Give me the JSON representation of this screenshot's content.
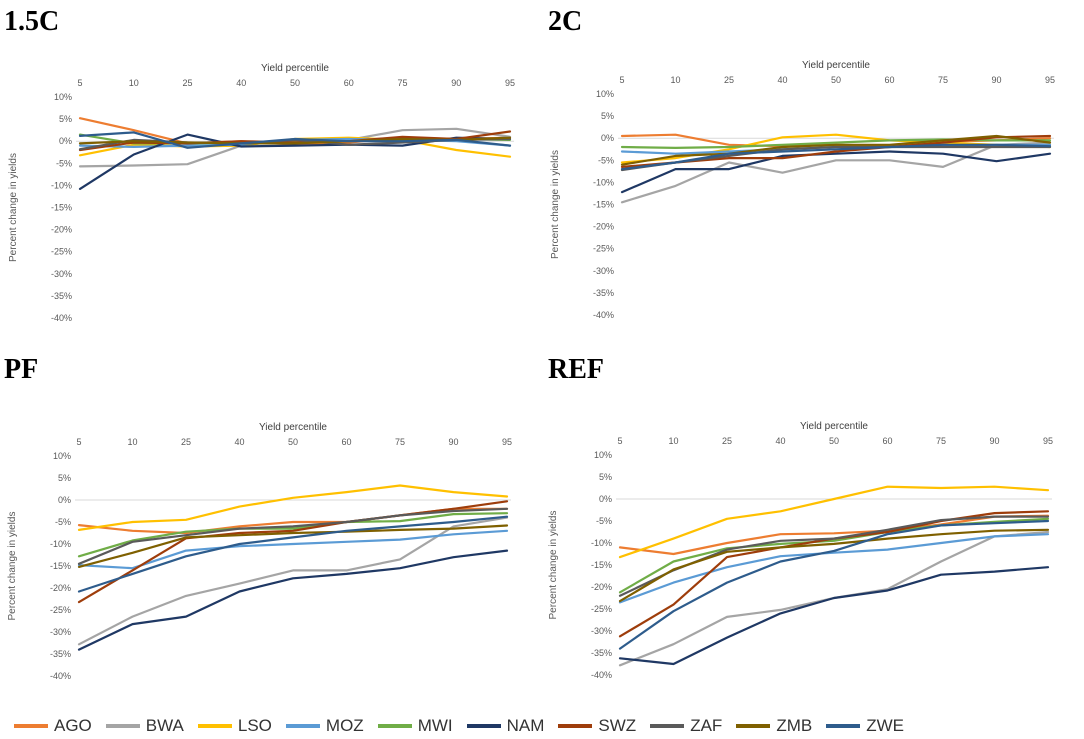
{
  "legend": [
    {
      "code": "AGO",
      "color": "#ED7D31"
    },
    {
      "code": "BWA",
      "color": "#A5A5A5"
    },
    {
      "code": "LSO",
      "color": "#FFC000"
    },
    {
      "code": "MOZ",
      "color": "#5B9BD5"
    },
    {
      "code": "MWI",
      "color": "#70AD47"
    },
    {
      "code": "NAM",
      "color": "#1F3864"
    },
    {
      "code": "SWZ",
      "color": "#9E3D0B"
    },
    {
      "code": "ZAF",
      "color": "#5A5A5A"
    },
    {
      "code": "ZMB",
      "color": "#7F6000"
    },
    {
      "code": "ZWE",
      "color": "#2E5C8C"
    }
  ],
  "chart_data": [
    {
      "type": "line",
      "title": "1.5C",
      "xlabel": "Yield percentile",
      "ylabel": "Percent change in yields",
      "categories": [
        "5",
        "10",
        "25",
        "40",
        "50",
        "60",
        "75",
        "90",
        "95"
      ],
      "ylim": [
        -40,
        10
      ],
      "yticks": [
        "10%",
        "5%",
        "0%",
        "-5%",
        "-10%",
        "-15%",
        "-20%",
        "-25%",
        "-30%",
        "-35%",
        "-40%"
      ],
      "series": [
        {
          "name": "AGO",
          "values": [
            5.2,
            2.5,
            -0.5,
            0.0,
            -0.8,
            -0.3,
            0.8,
            0.5,
            0.8
          ]
        },
        {
          "name": "BWA",
          "values": [
            -5.7,
            -5.5,
            -5.2,
            -1.0,
            0.5,
            0.3,
            2.5,
            2.8,
            1.0
          ]
        },
        {
          "name": "LSO",
          "values": [
            -3.2,
            -0.8,
            -1.2,
            -1.0,
            0.5,
            0.8,
            0.3,
            -2.0,
            -3.5
          ]
        },
        {
          "name": "MOZ",
          "values": [
            -1.0,
            -1.3,
            -1.0,
            -0.8,
            0.3,
            0.5,
            0.3,
            0.0,
            -1.0
          ]
        },
        {
          "name": "MWI",
          "values": [
            1.5,
            -0.5,
            -0.5,
            -0.3,
            0.0,
            0.0,
            0.3,
            0.5,
            0.3
          ]
        },
        {
          "name": "NAM",
          "values": [
            -10.8,
            -3.0,
            1.5,
            -1.2,
            -1.0,
            -0.8,
            -1.0,
            0.8,
            0.5
          ]
        },
        {
          "name": "SWZ",
          "values": [
            -2.0,
            -0.3,
            -0.5,
            0.0,
            -0.3,
            0.0,
            1.0,
            0.5,
            2.2
          ]
        },
        {
          "name": "ZAF",
          "values": [
            -1.8,
            0.3,
            -0.3,
            -0.5,
            0.3,
            -0.8,
            -0.3,
            0.3,
            0.5
          ]
        },
        {
          "name": "ZMB",
          "values": [
            -0.5,
            0.0,
            -0.3,
            -0.5,
            -0.5,
            0.0,
            0.5,
            0.3,
            0.8
          ]
        },
        {
          "name": "ZWE",
          "values": [
            1.2,
            2.0,
            -1.5,
            -0.5,
            0.5,
            0.0,
            0.0,
            0.3,
            -1.0
          ]
        }
      ]
    },
    {
      "type": "line",
      "title": "2C",
      "xlabel": "Yield percentile",
      "ylabel": "Percent change in yields",
      "categories": [
        "5",
        "10",
        "25",
        "40",
        "50",
        "60",
        "75",
        "90",
        "95"
      ],
      "ylim": [
        -40,
        10
      ],
      "yticks": [
        "10%",
        "5%",
        "0%",
        "-5%",
        "-10%",
        "-15%",
        "-20%",
        "-25%",
        "-30%",
        "-35%",
        "-40%"
      ],
      "series": [
        {
          "name": "AGO",
          "values": [
            0.5,
            0.8,
            -1.5,
            -1.8,
            -1.5,
            -1.8,
            -0.8,
            -0.5,
            0.0
          ]
        },
        {
          "name": "BWA",
          "values": [
            -14.5,
            -10.8,
            -5.5,
            -7.8,
            -5.0,
            -5.0,
            -6.5,
            -1.5,
            -1.0
          ]
        },
        {
          "name": "LSO",
          "values": [
            -5.5,
            -4.5,
            -2.5,
            0.2,
            0.8,
            -0.5,
            -1.0,
            -1.5,
            -2.0
          ]
        },
        {
          "name": "MOZ",
          "values": [
            -3.0,
            -3.5,
            -3.0,
            -2.5,
            -2.0,
            -2.0,
            -1.8,
            -1.5,
            -1.5
          ]
        },
        {
          "name": "MWI",
          "values": [
            -2.0,
            -2.2,
            -2.0,
            -1.5,
            -1.0,
            -0.5,
            -0.3,
            -0.5,
            -0.5
          ]
        },
        {
          "name": "NAM",
          "values": [
            -12.2,
            -7.0,
            -7.0,
            -4.0,
            -3.5,
            -3.0,
            -3.5,
            -5.2,
            -3.5
          ]
        },
        {
          "name": "SWZ",
          "values": [
            -6.5,
            -5.5,
            -4.5,
            -4.5,
            -3.0,
            -2.0,
            -1.0,
            0.2,
            0.5
          ]
        },
        {
          "name": "ZAF",
          "values": [
            -7.2,
            -5.5,
            -4.0,
            -2.5,
            -2.0,
            -2.0,
            -2.0,
            -2.0,
            -2.0
          ]
        },
        {
          "name": "ZMB",
          "values": [
            -6.0,
            -4.0,
            -3.5,
            -2.0,
            -1.5,
            -1.5,
            -0.5,
            0.5,
            -1.0
          ]
        },
        {
          "name": "ZWE",
          "values": [
            -7.0,
            -5.5,
            -3.5,
            -3.0,
            -2.5,
            -2.0,
            -1.5,
            -1.5,
            -1.8
          ]
        }
      ]
    },
    {
      "type": "line",
      "title": "PF",
      "xlabel": "Yield percentile",
      "ylabel": "Percent change in yields",
      "categories": [
        "5",
        "10",
        "25",
        "40",
        "50",
        "60",
        "75",
        "90",
        "95"
      ],
      "ylim": [
        -40,
        10
      ],
      "yticks": [
        "10%",
        "5%",
        "0%",
        "-5%",
        "-10%",
        "-15%",
        "-20%",
        "-25%",
        "-30%",
        "-35%",
        "-40%"
      ],
      "series": [
        {
          "name": "AGO",
          "values": [
            -5.7,
            -7.0,
            -7.5,
            -6.0,
            -5.0,
            -5.0,
            -3.5,
            -2.0,
            -2.0
          ]
        },
        {
          "name": "BWA",
          "values": [
            -32.8,
            -26.5,
            -21.8,
            -19.0,
            -16.0,
            -16.0,
            -13.5,
            -6.0,
            -4.0
          ]
        },
        {
          "name": "LSO",
          "values": [
            -6.8,
            -5.0,
            -4.5,
            -1.5,
            0.5,
            1.8,
            3.3,
            1.8,
            0.8
          ]
        },
        {
          "name": "MOZ",
          "values": [
            -14.8,
            -15.5,
            -11.5,
            -10.5,
            -10.0,
            -9.5,
            -9.0,
            -7.8,
            -7.0
          ]
        },
        {
          "name": "MWI",
          "values": [
            -12.8,
            -9.2,
            -7.2,
            -6.5,
            -6.5,
            -5.0,
            -4.8,
            -3.2,
            -3.0
          ]
        },
        {
          "name": "NAM",
          "values": [
            -34.0,
            -28.2,
            -26.5,
            -20.8,
            -17.8,
            -16.8,
            -15.5,
            -13.0,
            -11.5
          ]
        },
        {
          "name": "SWZ",
          "values": [
            -23.2,
            -16.0,
            -8.7,
            -7.5,
            -7.0,
            -5.0,
            -3.5,
            -2.0,
            -0.3
          ]
        },
        {
          "name": "ZAF",
          "values": [
            -14.5,
            -9.5,
            -8.0,
            -6.5,
            -6.0,
            -5.0,
            -3.5,
            -2.5,
            -2.0
          ]
        },
        {
          "name": "ZMB",
          "values": [
            -15.2,
            -12.0,
            -8.5,
            -8.0,
            -7.5,
            -7.2,
            -6.8,
            -6.5,
            -5.8
          ]
        },
        {
          "name": "ZWE",
          "values": [
            -20.8,
            -16.8,
            -12.8,
            -10.0,
            -8.5,
            -7.0,
            -6.0,
            -5.0,
            -3.8
          ]
        }
      ]
    },
    {
      "type": "line",
      "title": "REF",
      "xlabel": "Yield percentile",
      "ylabel": "Percent change in yields",
      "categories": [
        "5",
        "10",
        "25",
        "40",
        "50",
        "60",
        "75",
        "90",
        "95"
      ],
      "ylim": [
        -40,
        10
      ],
      "yticks": [
        "10%",
        "5%",
        "0%",
        "-5%",
        "-10%",
        "-15%",
        "-20%",
        "-25%",
        "-30%",
        "-35%",
        "-40%"
      ],
      "series": [
        {
          "name": "AGO",
          "values": [
            -11.0,
            -12.5,
            -10.0,
            -8.0,
            -7.8,
            -7.2,
            -5.8,
            -4.0,
            -3.8
          ]
        },
        {
          "name": "BWA",
          "values": [
            -37.8,
            -33.0,
            -26.8,
            -25.2,
            -22.5,
            -20.5,
            -14.2,
            -8.5,
            -7.5
          ]
        },
        {
          "name": "LSO",
          "values": [
            -13.2,
            -9.0,
            -4.5,
            -2.8,
            0.0,
            2.8,
            2.5,
            2.8,
            2.0
          ]
        },
        {
          "name": "MOZ",
          "values": [
            -23.5,
            -19.0,
            -15.5,
            -13.0,
            -12.2,
            -11.5,
            -10.0,
            -8.5,
            -8.0
          ]
        },
        {
          "name": "MWI",
          "values": [
            -21.2,
            -14.2,
            -11.2,
            -10.2,
            -9.5,
            -7.5,
            -6.0,
            -5.2,
            -4.5
          ]
        },
        {
          "name": "NAM",
          "values": [
            -36.2,
            -37.5,
            -31.5,
            -26.0,
            -22.5,
            -20.8,
            -17.2,
            -16.5,
            -15.5
          ]
        },
        {
          "name": "SWZ",
          "values": [
            -31.2,
            -24.0,
            -13.2,
            -11.0,
            -9.0,
            -7.5,
            -5.0,
            -3.2,
            -2.8
          ]
        },
        {
          "name": "ZAF",
          "values": [
            -22.0,
            -16.2,
            -11.5,
            -9.5,
            -9.0,
            -7.0,
            -4.8,
            -4.0,
            -4.0
          ]
        },
        {
          "name": "ZMB",
          "values": [
            -23.2,
            -16.0,
            -12.0,
            -11.0,
            -10.2,
            -9.0,
            -8.0,
            -7.2,
            -7.0
          ]
        },
        {
          "name": "ZWE",
          "values": [
            -34.0,
            -25.5,
            -19.0,
            -14.2,
            -11.8,
            -8.0,
            -6.0,
            -5.5,
            -5.0
          ]
        }
      ]
    }
  ]
}
